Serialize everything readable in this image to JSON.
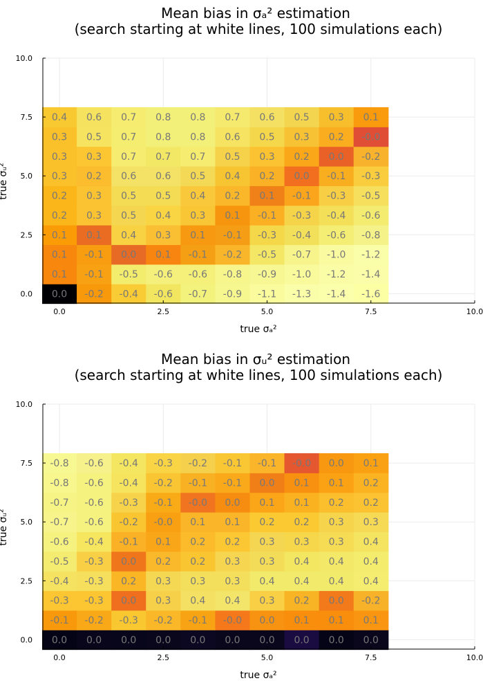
{
  "chart_data": [
    {
      "type": "heatmap",
      "title": "Mean bias in σₐ² estimation",
      "subtitle": "(search starting at white lines, 100 simulations each)",
      "xlabel": "true σₐ²",
      "ylabel": "true σᵤ²",
      "xlim": [
        -0.4,
        10.0
      ],
      "ylim": [
        -0.4,
        10.0
      ],
      "xticks": [
        "0.0",
        "2.5",
        "5.0",
        "7.5",
        "10.0"
      ],
      "yticks": [
        "0.0",
        "2.5",
        "5.0",
        "7.5",
        "10.0"
      ],
      "x": [
        0.0,
        0.833,
        1.667,
        2.5,
        3.333,
        4.167,
        5.0,
        5.833,
        6.667,
        7.5
      ],
      "y": [
        0.0,
        0.833,
        1.667,
        2.5,
        3.333,
        4.167,
        5.0,
        5.833,
        6.667,
        7.5
      ],
      "grid": true,
      "colormap": "inferno",
      "labels": [
        [
          "0.0",
          "-0.2",
          "-0.4",
          "-0.6",
          "-0.7",
          "-0.9",
          "-1.1",
          "-1.3",
          "-1.4",
          "-1.6"
        ],
        [
          "0.1",
          "-0.1",
          "-0.5",
          "-0.6",
          "-0.6",
          "-0.8",
          "-0.9",
          "-1.0",
          "-1.2",
          "-1.4"
        ],
        [
          "0.1",
          "-0.1",
          "0.0",
          "0.1",
          "-0.1",
          "-0.2",
          "-0.5",
          "-0.7",
          "-1.0",
          "-1.2"
        ],
        [
          "0.1",
          "0.1",
          "0.4",
          "0.3",
          "0.1",
          "-0.1",
          "-0.3",
          "-0.4",
          "-0.6",
          "-0.8"
        ],
        [
          "0.2",
          "0.3",
          "0.5",
          "0.4",
          "0.3",
          "0.1",
          "-0.1",
          "-0.3",
          "-0.4",
          "-0.6"
        ],
        [
          "0.2",
          "0.3",
          "0.5",
          "0.5",
          "0.4",
          "0.2",
          "0.1",
          "-0.1",
          "-0.3",
          "-0.5"
        ],
        [
          "0.3",
          "0.2",
          "0.6",
          "0.6",
          "0.5",
          "0.4",
          "0.2",
          "0.0",
          "-0.1",
          "-0.3"
        ],
        [
          "0.3",
          "0.3",
          "0.7",
          "0.7",
          "0.7",
          "0.5",
          "0.3",
          "0.2",
          "0.0",
          "-0.2"
        ],
        [
          "0.3",
          "0.5",
          "0.7",
          "0.8",
          "0.8",
          "0.6",
          "0.5",
          "0.3",
          "0.2",
          "-0.0"
        ],
        [
          "0.4",
          "0.6",
          "0.7",
          "0.8",
          "0.8",
          "0.7",
          "0.6",
          "0.5",
          "0.3",
          "0.1"
        ]
      ],
      "colors": [
        [
          "#000004",
          "#f8990c",
          "#f9cb35",
          "#f2e661",
          "#f3f27d",
          "#f6f78f",
          "#f9fb9d",
          "#fbfea8",
          "#fbfeab",
          "#fcffa4"
        ],
        [
          "#f8870e",
          "#f7a113",
          "#f3ed6d",
          "#f4f07b",
          "#f4f07a",
          "#f6f68d",
          "#f7f793",
          "#f8fa9c",
          "#fafca6",
          "#fbfda8"
        ],
        [
          "#f8870e",
          "#f89c10",
          "#e76b24",
          "#f8850f",
          "#f5a014",
          "#fab62a",
          "#f3e765",
          "#f6f48a",
          "#fafba1",
          "#fbfea8"
        ],
        [
          "#fb9b06",
          "#ea6c22",
          "#f9d243",
          "#fbbf33",
          "#f89a11",
          "#f59e15",
          "#f5d74a",
          "#f3e05a",
          "#f5ee75",
          "#f6f28a"
        ],
        [
          "#fbb61a",
          "#fbc331",
          "#f4d650",
          "#f9d443",
          "#f9c636",
          "#f8950e",
          "#fbaf22",
          "#f6d44a",
          "#f4df59",
          "#f4ec71"
        ],
        [
          "#fbb61a",
          "#fbc331",
          "#f4dc54",
          "#f4dc54",
          "#f9c93b",
          "#fab729",
          "#f08018",
          "#faa51b",
          "#f8ce44",
          "#f5df5c"
        ],
        [
          "#fbc12a",
          "#fbbd2e",
          "#f4e266",
          "#f4e266",
          "#f3d955",
          "#f8c532",
          "#fab125",
          "#f26f1f",
          "#f9ae1f",
          "#f9cd3d"
        ],
        [
          "#fbc12a",
          "#fbc631",
          "#f6ec6f",
          "#f2e866",
          "#f6ec6f",
          "#f6d24a",
          "#fbc331",
          "#faa719",
          "#ea6127",
          "#f9b22c"
        ],
        [
          "#fbc12a",
          "#f6e35f",
          "#f5ed70",
          "#f3f07a",
          "#f3f07a",
          "#f5e361",
          "#f5d74c",
          "#f7c234",
          "#faad1f",
          "#e04f35"
        ],
        [
          "#f9c931",
          "#f5e25e",
          "#f6ec6f",
          "#f3f07a",
          "#f3f07a",
          "#f5ea6e",
          "#f4e062",
          "#f3d550",
          "#f8bf2d",
          "#f99b0d"
        ]
      ]
    },
    {
      "type": "heatmap",
      "title": "Mean bias in σᵤ² estimation",
      "subtitle": "(search starting at white lines, 100 simulations each)",
      "xlabel": "true σₐ²",
      "ylabel": "true σᵤ²",
      "xlim": [
        -0.4,
        10.0
      ],
      "ylim": [
        -0.4,
        10.0
      ],
      "xticks": [
        "0.0",
        "2.5",
        "5.0",
        "7.5",
        "10.0"
      ],
      "yticks": [
        "0.0",
        "2.5",
        "5.0",
        "7.5",
        "10.0"
      ],
      "x": [
        0.0,
        0.833,
        1.667,
        2.5,
        3.333,
        4.167,
        5.0,
        5.833,
        6.667,
        7.5
      ],
      "y": [
        0.0,
        0.833,
        1.667,
        2.5,
        3.333,
        4.167,
        5.0,
        5.833,
        6.667,
        7.5
      ],
      "grid": true,
      "colormap": "inferno",
      "labels": [
        [
          "0.0",
          "0.0",
          "0.0",
          "0.0",
          "0.0",
          "0.0",
          "0.0",
          "0.0",
          "0.0",
          "0.0"
        ],
        [
          "-0.1",
          "-0.2",
          "-0.3",
          "-0.2",
          "-0.1",
          "-0.0",
          "0.0",
          "0.1",
          "0.1",
          "0.1"
        ],
        [
          "-0.3",
          "-0.3",
          "0.0",
          "0.3",
          "0.4",
          "0.4",
          "0.3",
          "0.2",
          "0.0",
          "-0.2"
        ],
        [
          "-0.4",
          "-0.3",
          "0.2",
          "0.3",
          "0.3",
          "0.3",
          "0.4",
          "0.4",
          "0.4",
          "0.4"
        ],
        [
          "-0.5",
          "-0.3",
          "0.0",
          "0.2",
          "0.2",
          "0.3",
          "0.3",
          "0.4",
          "0.4",
          "0.4"
        ],
        [
          "-0.6",
          "-0.4",
          "-0.1",
          "0.1",
          "0.2",
          "0.2",
          "0.3",
          "0.3",
          "0.3",
          "0.4"
        ],
        [
          "-0.7",
          "-0.6",
          "-0.2",
          "-0.0",
          "0.1",
          "0.1",
          "0.2",
          "0.2",
          "0.3",
          "0.3"
        ],
        [
          "-0.7",
          "-0.6",
          "-0.3",
          "-0.1",
          "-0.0",
          "0.0",
          "0.1",
          "0.1",
          "0.2",
          "0.2"
        ],
        [
          "-0.8",
          "-0.6",
          "-0.4",
          "-0.2",
          "-0.1",
          "-0.1",
          "0.0",
          "0.1",
          "0.1",
          "0.2"
        ],
        [
          "-0.8",
          "-0.6",
          "-0.4",
          "-0.3",
          "-0.2",
          "-0.1",
          "-0.1",
          "-0.0",
          "0.0",
          "0.1"
        ]
      ],
      "colors": [
        [
          "#050416",
          "#09061c",
          "#08061a",
          "#0a071d",
          "#0c0822",
          "#0a071d",
          "#0a071d",
          "#1a0c40",
          "#050416",
          "#0a071d"
        ],
        [
          "#f8990c",
          "#f9a918",
          "#f9c830",
          "#fab728",
          "#f8a313",
          "#f5781a",
          "#f79310",
          "#f98d0c",
          "#f98d0c",
          "#f99511"
        ],
        [
          "#fbc631",
          "#fbc631",
          "#f06f1f",
          "#f7d04a",
          "#f4e062",
          "#f3e56a",
          "#f8cf45",
          "#f8b424",
          "#f37a1a",
          "#f8b22a"
        ],
        [
          "#f5e261",
          "#f6df5c",
          "#fab625",
          "#f4d853",
          "#f3df5c",
          "#f3df5c",
          "#f2ea6a",
          "#f2ea6a",
          "#f2ea6a",
          "#f4ed70"
        ],
        [
          "#f4ec70",
          "#f8cf45",
          "#f0761b",
          "#fab92a",
          "#f9c531",
          "#f6d651",
          "#f3dd58",
          "#f3e660",
          "#f3e867",
          "#f3ec6c"
        ],
        [
          "#f5f27f",
          "#f6e55f",
          "#fab125",
          "#faa619",
          "#fbbb2b",
          "#fbc834",
          "#f4d653",
          "#f6d74b",
          "#f6db54",
          "#f4e460"
        ],
        [
          "#f6f48a",
          "#f6f280",
          "#f9c531",
          "#f9a012",
          "#fab628",
          "#fab628",
          "#fbc932",
          "#fbc932",
          "#f6d44c",
          "#f6da56"
        ],
        [
          "#f5f484",
          "#f6f280",
          "#f6d34a",
          "#f9ab17",
          "#f17420",
          "#f68d11",
          "#fba518",
          "#fbb221",
          "#fbbe2d",
          "#fbc331"
        ],
        [
          "#f7f78e",
          "#f6f280",
          "#f6e35e",
          "#f9c532",
          "#f9b124",
          "#faa91a",
          "#f17f18",
          "#f99110",
          "#faa114",
          "#fbb322"
        ],
        [
          "#f8f893",
          "#f6f18a",
          "#f5e661",
          "#f9d445",
          "#f5d04c",
          "#f9c634",
          "#fbb52a",
          "#e5572f",
          "#f89810",
          "#faa113"
        ]
      ]
    }
  ]
}
